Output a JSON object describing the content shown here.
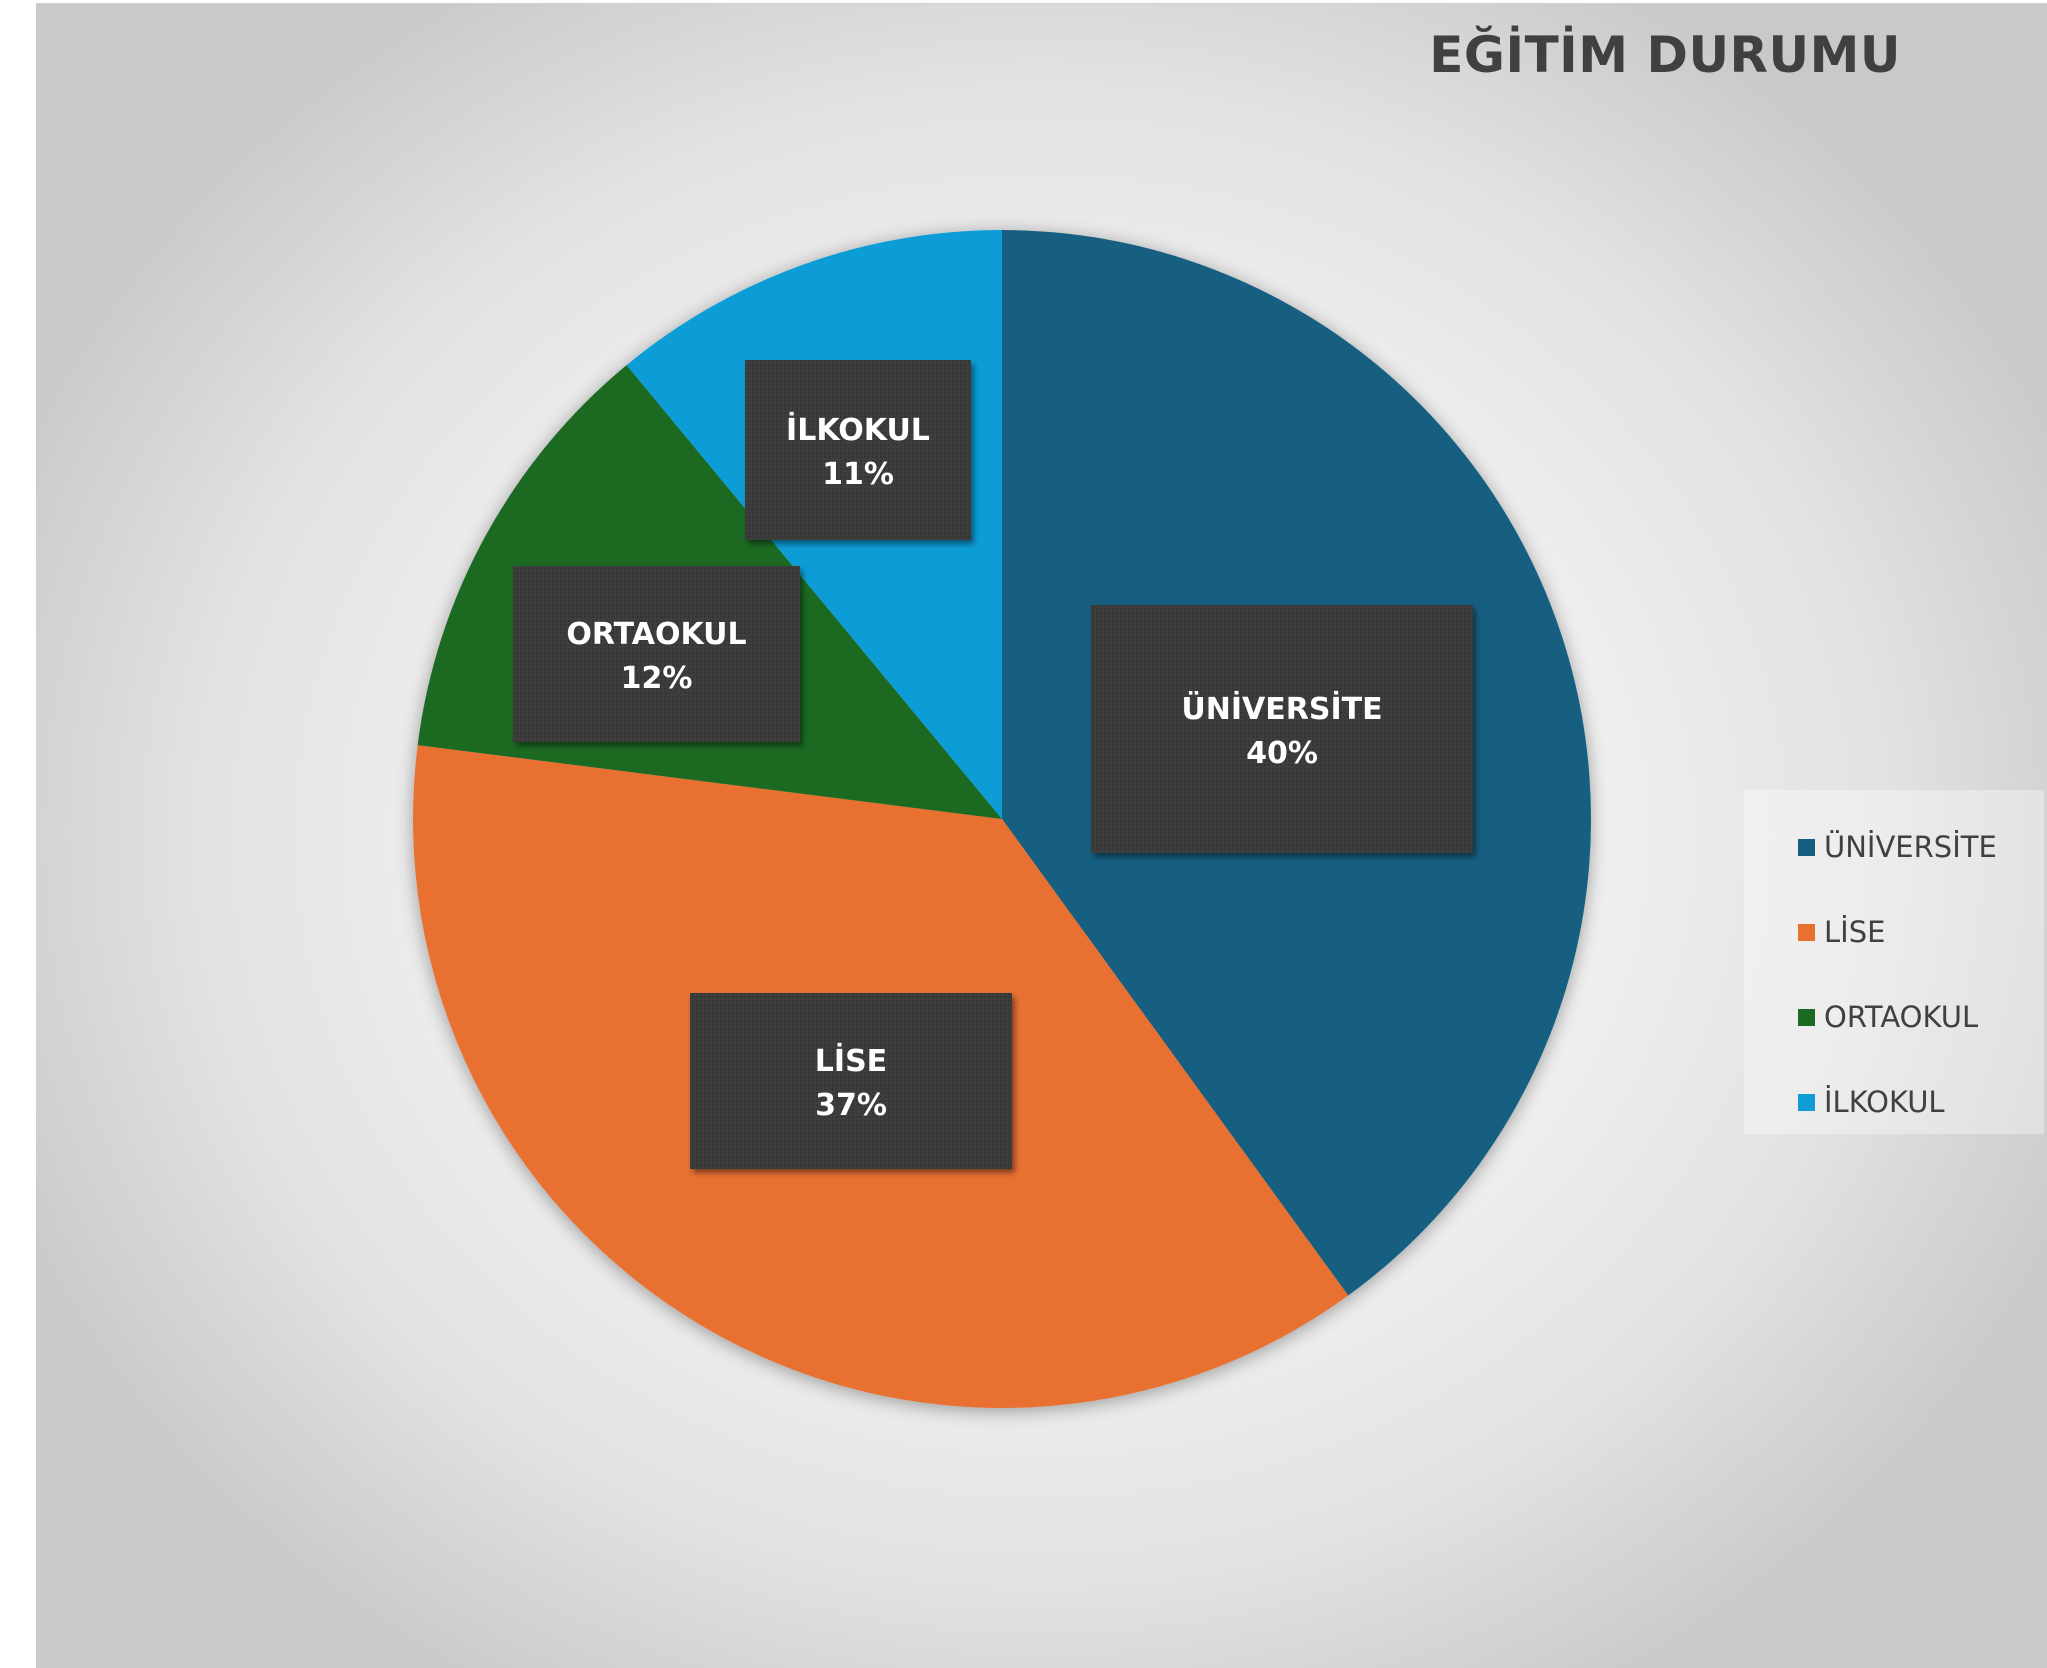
{
  "colors": {
    "universite": "#175f81",
    "lise": "#e87132",
    "ortaokul": "#1b6b24",
    "ilkokul": "#109dd6",
    "label_box": "#3c3c3c",
    "label_text": "#ffffff"
  },
  "chart_data": {
    "type": "pie",
    "title": "EĞİTİM DURUMU",
    "legend_position": "right",
    "slices": [
      {
        "label": "ÜNİVERSİTE",
        "value": 40,
        "percent_label": "40%",
        "color_key": "universite"
      },
      {
        "label": "LİSE",
        "value": 37,
        "percent_label": "37%",
        "color_key": "lise"
      },
      {
        "label": "ORTAOKUL",
        "value": 12,
        "percent_label": "12%",
        "color_key": "ortaokul"
      },
      {
        "label": "İLKOKUL",
        "value": 11,
        "percent_label": "11%",
        "color_key": "ilkokul"
      }
    ]
  }
}
